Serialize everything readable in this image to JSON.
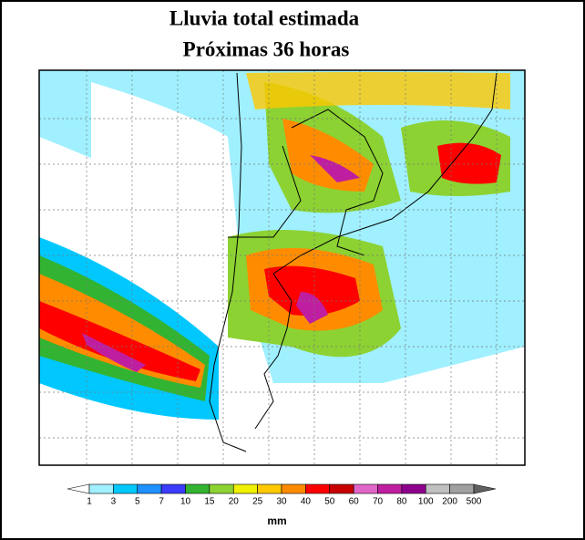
{
  "header": {
    "line1": "Lluvia total estimada",
    "line2": "Próximas 36 horas"
  },
  "colorbar": {
    "labels": [
      1,
      3,
      5,
      7,
      10,
      15,
      20,
      25,
      30,
      40,
      50,
      60,
      70,
      80,
      100,
      200,
      500
    ],
    "colors": [
      "#ffffff",
      "#a0f0ff",
      "#00c8ff",
      "#1e90ff",
      "#3c3cff",
      "#32b432",
      "#8cd232",
      "#f0f000",
      "#ffc800",
      "#ff8c00",
      "#ff0000",
      "#c80000",
      "#e066c8",
      "#c01ea0",
      "#8c008c",
      "#c0c0c0",
      "#a0a0a0",
      "#606060"
    ],
    "unit": "mm"
  }
}
